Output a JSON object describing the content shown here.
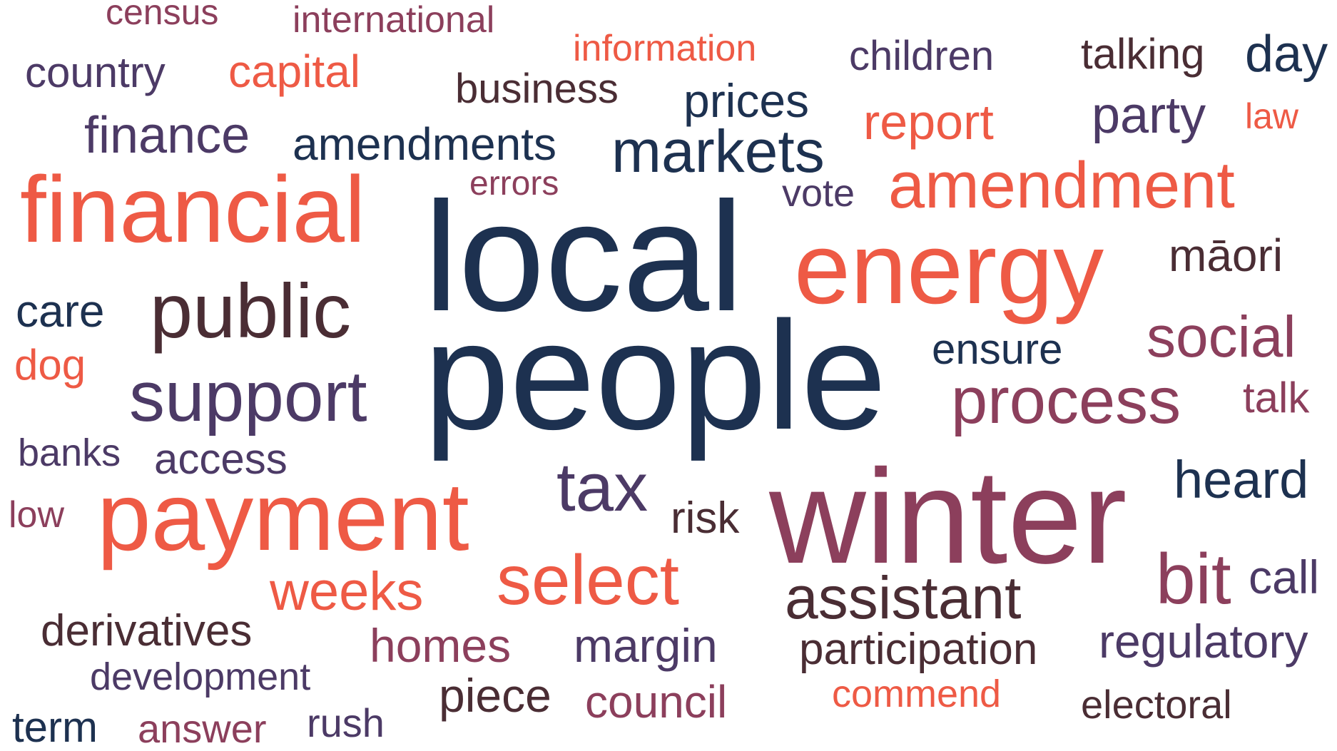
{
  "colors": {
    "navy": "#1d3150",
    "coral": "#ee5a45",
    "plum": "#8c3f5c",
    "purple": "#4c3a66",
    "brown": "#4a2d34",
    "background": "#ffffff"
  },
  "words": [
    {
      "id": "census",
      "text": "census",
      "color": "plum"
    },
    {
      "id": "international",
      "text": "international",
      "color": "plum"
    },
    {
      "id": "information",
      "text": "information",
      "color": "coral"
    },
    {
      "id": "children",
      "text": "children",
      "color": "purple"
    },
    {
      "id": "talking",
      "text": "talking",
      "color": "brown"
    },
    {
      "id": "day",
      "text": "day",
      "color": "navy"
    },
    {
      "id": "country",
      "text": "country",
      "color": "purple"
    },
    {
      "id": "capital",
      "text": "capital",
      "color": "coral"
    },
    {
      "id": "business",
      "text": "business",
      "color": "brown"
    },
    {
      "id": "prices",
      "text": "prices",
      "color": "navy"
    },
    {
      "id": "report",
      "text": "report",
      "color": "coral"
    },
    {
      "id": "party",
      "text": "party",
      "color": "purple"
    },
    {
      "id": "law",
      "text": "law",
      "color": "coral"
    },
    {
      "id": "finance",
      "text": "finance",
      "color": "purple"
    },
    {
      "id": "amendments",
      "text": "amendments",
      "color": "navy"
    },
    {
      "id": "markets",
      "text": "markets",
      "color": "navy"
    },
    {
      "id": "amendment",
      "text": "amendment",
      "color": "coral"
    },
    {
      "id": "financial",
      "text": "financial",
      "color": "coral"
    },
    {
      "id": "errors",
      "text": "errors",
      "color": "plum"
    },
    {
      "id": "vote",
      "text": "vote",
      "color": "purple"
    },
    {
      "id": "local",
      "text": "local",
      "color": "navy"
    },
    {
      "id": "energy",
      "text": "energy",
      "color": "coral"
    },
    {
      "id": "maori",
      "text": "māori",
      "color": "brown"
    },
    {
      "id": "care",
      "text": "care",
      "color": "navy"
    },
    {
      "id": "public",
      "text": "public",
      "color": "brown"
    },
    {
      "id": "ensure",
      "text": "ensure",
      "color": "navy"
    },
    {
      "id": "social",
      "text": "social",
      "color": "plum"
    },
    {
      "id": "dog",
      "text": "dog",
      "color": "coral"
    },
    {
      "id": "people",
      "text": "people",
      "color": "navy"
    },
    {
      "id": "process",
      "text": "process",
      "color": "plum"
    },
    {
      "id": "talk",
      "text": "talk",
      "color": "plum"
    },
    {
      "id": "support",
      "text": "support",
      "color": "purple"
    },
    {
      "id": "banks",
      "text": "banks",
      "color": "purple"
    },
    {
      "id": "access",
      "text": "access",
      "color": "purple"
    },
    {
      "id": "tax",
      "text": "tax",
      "color": "purple"
    },
    {
      "id": "heard",
      "text": "heard",
      "color": "navy"
    },
    {
      "id": "winter",
      "text": "winter",
      "color": "plum"
    },
    {
      "id": "low",
      "text": "low",
      "color": "plum"
    },
    {
      "id": "payment",
      "text": "payment",
      "color": "coral"
    },
    {
      "id": "risk",
      "text": "risk",
      "color": "brown"
    },
    {
      "id": "bit",
      "text": "bit",
      "color": "plum"
    },
    {
      "id": "call",
      "text": "call",
      "color": "purple"
    },
    {
      "id": "select",
      "text": "select",
      "color": "coral"
    },
    {
      "id": "weeks",
      "text": "weeks",
      "color": "coral"
    },
    {
      "id": "assistant",
      "text": "assistant",
      "color": "brown"
    },
    {
      "id": "derivatives",
      "text": "derivatives",
      "color": "brown"
    },
    {
      "id": "homes",
      "text": "homes",
      "color": "plum"
    },
    {
      "id": "margin",
      "text": "margin",
      "color": "purple"
    },
    {
      "id": "regulatory",
      "text": "regulatory",
      "color": "purple"
    },
    {
      "id": "participation",
      "text": "participation",
      "color": "brown"
    },
    {
      "id": "development",
      "text": "development",
      "color": "purple"
    },
    {
      "id": "piece",
      "text": "piece",
      "color": "brown"
    },
    {
      "id": "commend",
      "text": "commend",
      "color": "coral"
    },
    {
      "id": "electoral",
      "text": "electoral",
      "color": "brown"
    },
    {
      "id": "council",
      "text": "council",
      "color": "plum"
    },
    {
      "id": "term",
      "text": "term",
      "color": "navy"
    },
    {
      "id": "answer",
      "text": "answer",
      "color": "plum"
    },
    {
      "id": "rush",
      "text": "rush",
      "color": "purple"
    }
  ]
}
